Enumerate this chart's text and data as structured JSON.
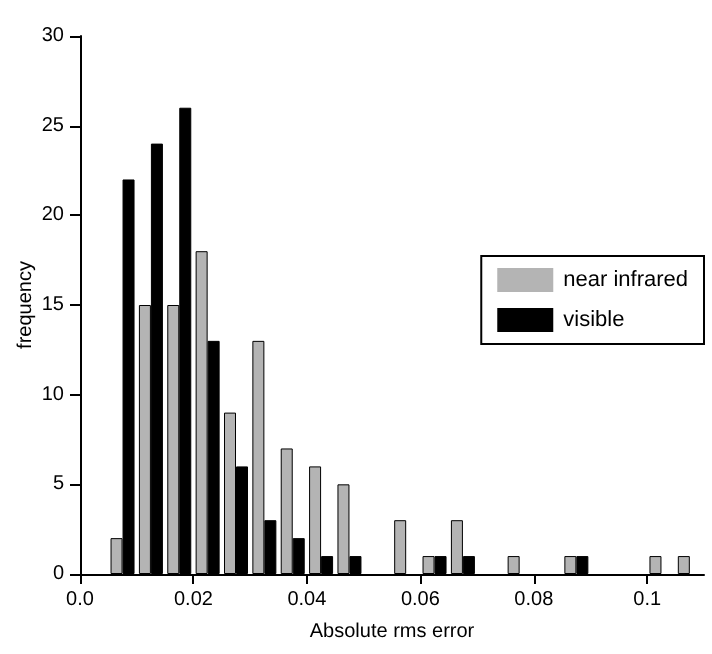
{
  "chart_data": {
    "type": "bar",
    "xlabel": "Absolute rms error",
    "ylabel": "frequency",
    "x": [
      0.0075,
      0.0125,
      0.0175,
      0.0225,
      0.0275,
      0.0325,
      0.0375,
      0.0425,
      0.0475,
      0.0525,
      0.0575,
      0.0625,
      0.0675,
      0.0725,
      0.0775,
      0.0825,
      0.0875,
      0.0925,
      0.0975,
      0.1025,
      0.1075
    ],
    "series": [
      {
        "name": "near infrared",
        "color": "#b4b4b4",
        "values": [
          2,
          15,
          15,
          18,
          9,
          13,
          7,
          6,
          5,
          null,
          3,
          1,
          3,
          null,
          1,
          null,
          1,
          null,
          null,
          1,
          1
        ]
      },
      {
        "name": "visible",
        "color": "#000000",
        "values": [
          22,
          24,
          26,
          13,
          6,
          3,
          2,
          1,
          1,
          null,
          null,
          1,
          1,
          null,
          null,
          null,
          1,
          null,
          null,
          null,
          null
        ]
      }
    ],
    "xlim": [
      0,
      0.11
    ],
    "xticks": [
      {
        "value": 0,
        "label": "0.0"
      },
      0.02,
      0.04,
      0.06,
      0.08,
      0.1
    ],
    "ylim": [
      0,
      30
    ],
    "yticks": [
      0,
      5,
      10,
      15,
      20,
      25,
      30
    ],
    "legend": "right",
    "grid": false
  }
}
